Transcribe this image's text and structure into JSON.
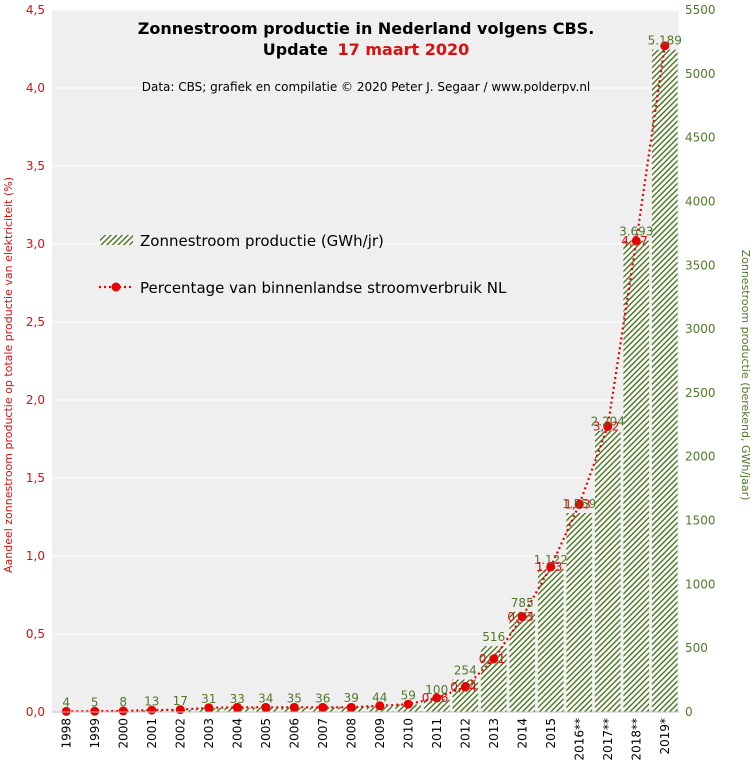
{
  "chart_data": {
    "type": "bar",
    "title": "Zonnestroom productie in Nederland volgens CBS.",
    "subtitle_prefix": "Update",
    "subtitle_date": "17 maart 2020",
    "source_note": "Data: CBS; grafiek en compilatie © 2020 Peter J. Segaar / www.polderpv.nl",
    "ylabel_left": "Aandeel zonnestroom productie op totale productie van elektriciteit (%)",
    "ylabel_right": "Zonnestroom productie (berekend, GWh/jaar)",
    "categories": [
      "1998",
      "1999",
      "2000",
      "2001",
      "2002",
      "2003",
      "2004",
      "2005",
      "2006",
      "2007",
      "2008",
      "2009",
      "2010",
      "2011",
      "2012",
      "2013",
      "2014",
      "2015",
      "2016**",
      "2017**",
      "2018**",
      "2019*"
    ],
    "yleft_ticks": [
      "0,0",
      "0,5",
      "1,0",
      "1,5",
      "2,0",
      "2,5",
      "3,0",
      "3,5",
      "4,0",
      "4,5"
    ],
    "yleft_range": [
      0,
      4.5
    ],
    "yright_ticks": [
      "0",
      "500",
      "1000",
      "1500",
      "2000",
      "2500",
      "3000",
      "3500",
      "4000",
      "4500",
      "5000",
      "5500"
    ],
    "yright_range": [
      0,
      5500
    ],
    "grid": true,
    "legend_placement": "upper-left",
    "colors": {
      "bar_green": "#4f7a28",
      "line_red": "#e60000",
      "plot_bg": "#efefef",
      "left_axis_text": "#d81010",
      "right_axis_text": "#4f7a28"
    },
    "series": [
      {
        "name": "Zonnestroom productie (GWh/jr)",
        "type": "bar",
        "axis": "right",
        "values": [
          4,
          5,
          8,
          13,
          17,
          31,
          33,
          34,
          35,
          36,
          39,
          44,
          59,
          100,
          254,
          516,
          785,
          1122,
          1559,
          2204,
          3693,
          5189
        ],
        "labels": [
          "4",
          "5",
          "8",
          "13",
          "17",
          "31",
          "33",
          "34",
          "35",
          "36",
          "39",
          "44",
          "59",
          "100",
          "254",
          "516",
          "785",
          "1.122",
          "1.559",
          "2.204",
          "3.693",
          "5.189"
        ]
      },
      {
        "name": "Percentage van binnenlandse stroomverbruik NL",
        "type": "line",
        "axis": "left",
        "values": [
          0.004,
          0.005,
          0.007,
          0.012,
          0.015,
          0.027,
          0.03,
          0.03,
          0.03,
          0.03,
          0.03,
          0.04,
          0.05,
          0.09,
          0.16,
          0.34,
          0.61,
          0.93,
          1.33,
          1.83,
          3.02,
          4.27
        ],
        "labels": [
          "",
          "",
          "",
          "",
          "",
          "",
          "",
          "",
          "",
          "",
          "",
          "",
          "",
          "0,16",
          "0,34",
          "0,61",
          "0,93",
          "1,33",
          "1,83",
          "3,02",
          "4,27",
          ""
        ],
        "label_offset": 1
      }
    ]
  }
}
